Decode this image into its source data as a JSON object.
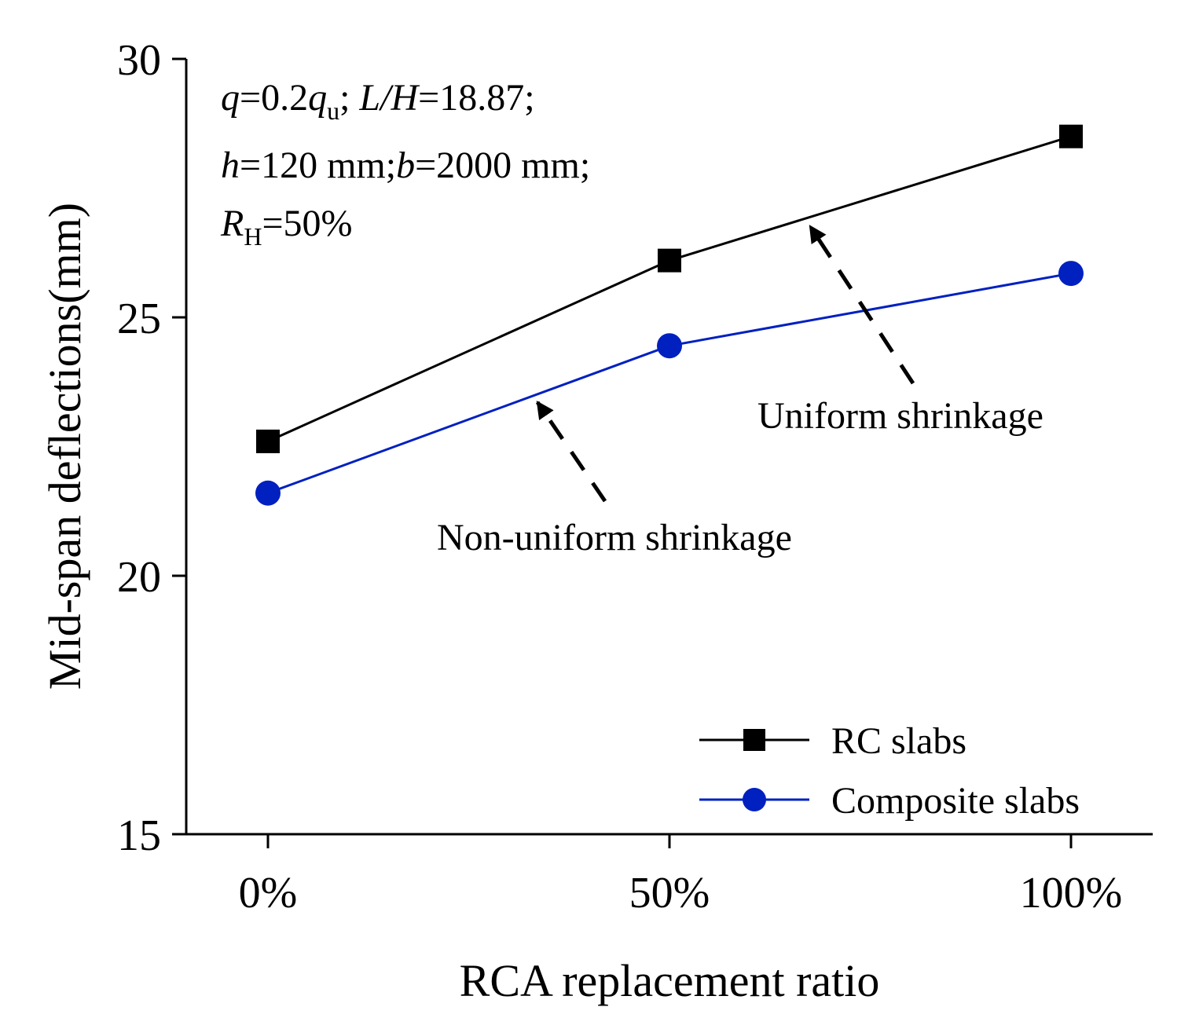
{
  "chart_data": {
    "type": "line",
    "title": "",
    "xlabel": "RCA replacement ratio",
    "ylabel": "Mid-span deflections(mm)",
    "categories": [
      "0%",
      "50%",
      "100%"
    ],
    "ylim": [
      15,
      30
    ],
    "yticks": [
      15,
      20,
      25,
      30
    ],
    "legend_position": "bottom-right",
    "grid": false,
    "series": [
      {
        "name": "RC slabs",
        "marker": "square",
        "color": "#000000",
        "values": [
          22.6,
          26.1,
          28.5
        ]
      },
      {
        "name": "Composite slabs",
        "marker": "circle",
        "color": "#0020c0",
        "values": [
          21.6,
          24.45,
          25.85
        ]
      }
    ],
    "annotations": [
      {
        "text": "Uniform shrinkage",
        "points_to_series": "RC slabs"
      },
      {
        "text": "Non-uniform shrinkage",
        "points_to_series": "Composite slabs"
      }
    ],
    "conditions": {
      "line1": {
        "q": "q",
        "eq1": "=0.2",
        "qu_base": "q",
        "qu_sub": "u",
        "sep": "; ",
        "LH": "L/H",
        "eq2": "=18.87;"
      },
      "line2": {
        "h": "h",
        "h_val": "=120 mm;",
        "b": "b",
        "b_val": "=2000 mm;"
      },
      "line3": {
        "R": "R",
        "R_sub": "H",
        "R_val": "=50%"
      }
    }
  }
}
